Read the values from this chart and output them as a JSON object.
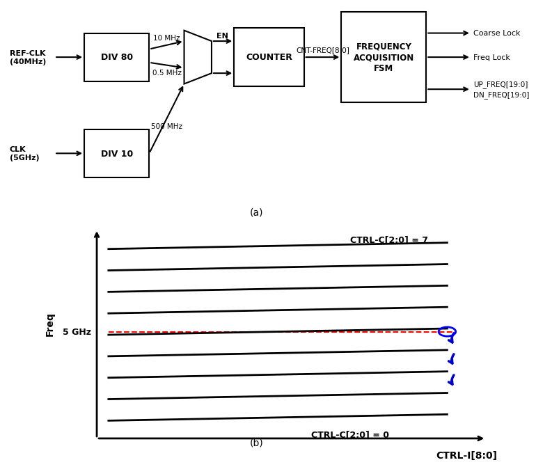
{
  "bg_color": "#ffffff",
  "title_a": "(a)",
  "title_b": "(b)",
  "block_diagram": {
    "ref_clk_label": "REF-CLK\n(40MHz)",
    "clk_label": "CLK\n(5GHz)",
    "div80_label": "DIV 80",
    "div10_label": "DIV 10",
    "mux_label": "EN",
    "counter_label": "COUNTER",
    "fsm_label": "FREQUENCY\nACQUISITION\nFSM",
    "freq_10mhz": "10 MHz",
    "freq_05mhz": "0.5 MHz",
    "freq_500mhz": "500 MHz",
    "cnt_freq_label": "CNT-FREQ[8:0]",
    "out1": "Coarse Lock",
    "out2": "Freq Lock",
    "out3": "UP_FREQ[19:0]\nDN_FREQ[19:0]"
  },
  "freq_plot": {
    "num_lines": 9,
    "ref_line_index": 4,
    "ref_label": "5 GHz",
    "xlabel": "CTRL-I[8:0]",
    "ylabel": "Freq",
    "top_label": "CTRL-C[2:0] = 7",
    "bottom_label": "CTRL-C[2:0] = 0",
    "line_color": "#000000",
    "ref_line_color": "#ff0000",
    "arrow_color": "#0000cc",
    "watermark_color": "#aaccee"
  }
}
